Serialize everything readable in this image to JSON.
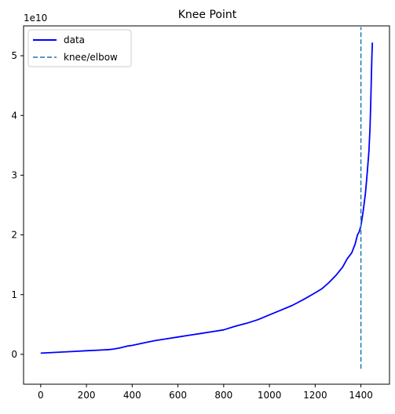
{
  "chart_data": {
    "type": "line",
    "title": "Knee Point",
    "xlabel": "",
    "ylabel": "",
    "y_offset_label": "1e10",
    "xlim": [
      -75,
      1525
    ],
    "ylim": [
      -5000000000.0,
      55000000000.0
    ],
    "x_ticks": [
      0,
      200,
      400,
      600,
      800,
      1000,
      1200,
      1400
    ],
    "y_ticks": [
      0,
      10000000000.0,
      20000000000.0,
      30000000000.0,
      40000000000.0,
      50000000000.0
    ],
    "x_tick_labels": [
      "0",
      "200",
      "400",
      "600",
      "800",
      "1000",
      "1200",
      "1400"
    ],
    "y_tick_labels": [
      "0",
      "1",
      "2",
      "3",
      "4",
      "5"
    ],
    "legend_position": "upper-left",
    "grid": false,
    "series": [
      {
        "name": "data",
        "color": "#0000ff",
        "style": "solid",
        "x": [
          0,
          50,
          100,
          150,
          200,
          250,
          300,
          320,
          350,
          380,
          400,
          450,
          500,
          550,
          600,
          650,
          700,
          750,
          800,
          850,
          900,
          950,
          1000,
          1050,
          1100,
          1150,
          1200,
          1230,
          1260,
          1290,
          1320,
          1340,
          1360,
          1375,
          1385,
          1392,
          1400,
          1410,
          1420,
          1428,
          1435,
          1440,
          1443,
          1446,
          1448,
          1450
        ],
        "y": [
          200000000.0,
          300000000.0,
          400000000.0,
          500000000.0,
          600000000.0,
          700000000.0,
          800000000.0,
          900000000.0,
          1100000000.0,
          1400000000.0,
          1500000000.0,
          1900000000.0,
          2300000000.0,
          2600000000.0,
          2900000000.0,
          3200000000.0,
          3500000000.0,
          3800000000.0,
          4100000000.0,
          4700000000.0,
          5200000000.0,
          5800000000.0,
          6600000000.0,
          7400000000.0,
          8200000000.0,
          9200000000.0,
          10300000000.0,
          11000000000.0,
          12000000000.0,
          13200000000.0,
          14600000000.0,
          16000000000.0,
          17000000000.0,
          18500000000.0,
          20000000000.0,
          20500000000.0,
          21500000000.0,
          24000000000.0,
          27000000000.0,
          30500000000.0,
          34000000000.0,
          38000000000.0,
          42000000000.0,
          47000000000.0,
          50000000000.0,
          52200000000.0
        ]
      },
      {
        "name": "knee/elbow",
        "color": "#1f77b4",
        "style": "dashed",
        "type": "vline",
        "x": 1400,
        "ymin": -2400000000.0,
        "ymax": 54800000000.0
      }
    ]
  }
}
